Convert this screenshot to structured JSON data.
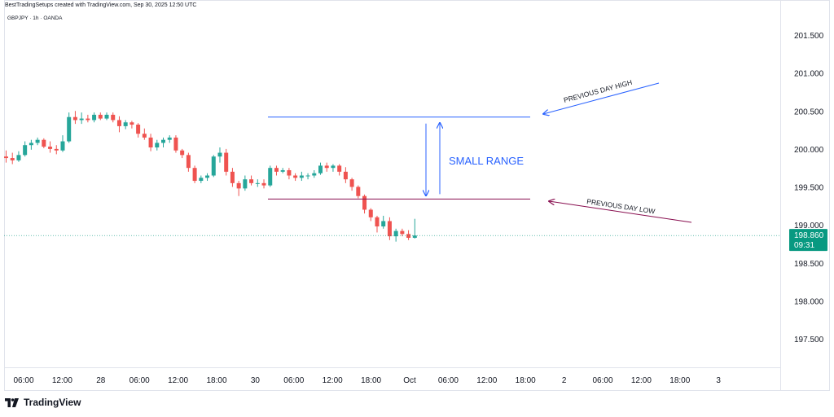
{
  "header": {
    "caption": "BestTradingSetups created with TradingView.com, Sep 30, 2025 12:50 UTC",
    "symbol": "GBPJPY · 1h · OANDA"
  },
  "branding": {
    "logo_text": "TradingView"
  },
  "colors": {
    "up": "#26a69a",
    "down": "#ef5350",
    "blue_line": "#2962ff",
    "red_line": "#880e4f",
    "price_badge": "#089981"
  },
  "chart_data": {
    "type": "candlestick",
    "symbol": "GBPJPY",
    "interval": "1h",
    "y_ticks": [
      "201.500",
      "201.000",
      "200.500",
      "200.000",
      "199.500",
      "199.000",
      "198.500",
      "198.000",
      "197.500"
    ],
    "ylim": [
      197.2,
      201.8
    ],
    "x_ticks": [
      {
        "label": "06:00",
        "i": 2
      },
      {
        "label": "12:00",
        "i": 8
      },
      {
        "label": "28",
        "i": 18
      },
      {
        "label": "06:00",
        "i": 24
      },
      {
        "label": "12:00",
        "i": 30
      },
      {
        "label": "18:00",
        "i": 36
      },
      {
        "label": "30",
        "i": 42
      },
      {
        "label": "06:00",
        "i": 48
      },
      {
        "label": "12:00",
        "i": 54
      },
      {
        "label": "18:00",
        "i": 60
      },
      {
        "label": "Oct",
        "i": 66
      },
      {
        "label": "06:00",
        "i": 72
      },
      {
        "label": "12:00",
        "i": 78
      },
      {
        "label": "18:00",
        "i": 84
      },
      {
        "label": "2",
        "i": 90
      },
      {
        "label": "06:00",
        "i": 96
      },
      {
        "label": "12:00",
        "i": 102
      },
      {
        "label": "18:00",
        "i": 108
      },
      {
        "label": "3",
        "i": 114
      }
    ],
    "candles": [
      {
        "o": 199.9,
        "h": 199.98,
        "l": 199.82,
        "c": 199.88
      },
      {
        "o": 199.88,
        "h": 199.95,
        "l": 199.8,
        "c": 199.85
      },
      {
        "o": 199.85,
        "h": 199.97,
        "l": 199.83,
        "c": 199.92
      },
      {
        "o": 199.92,
        "h": 200.1,
        "l": 199.9,
        "c": 200.05
      },
      {
        "o": 200.05,
        "h": 200.12,
        "l": 199.99,
        "c": 200.08
      },
      {
        "o": 200.08,
        "h": 200.15,
        "l": 200.05,
        "c": 200.12
      },
      {
        "o": 200.12,
        "h": 200.14,
        "l": 200.01,
        "c": 200.03
      },
      {
        "o": 200.03,
        "h": 200.1,
        "l": 199.95,
        "c": 200.0
      },
      {
        "o": 200.0,
        "h": 200.05,
        "l": 199.93,
        "c": 199.98
      },
      {
        "o": 199.98,
        "h": 200.18,
        "l": 199.96,
        "c": 200.1
      },
      {
        "o": 200.1,
        "h": 200.48,
        "l": 200.08,
        "c": 200.42
      },
      {
        "o": 200.42,
        "h": 200.5,
        "l": 200.33,
        "c": 200.38
      },
      {
        "o": 200.38,
        "h": 200.48,
        "l": 200.33,
        "c": 200.4
      },
      {
        "o": 200.4,
        "h": 200.45,
        "l": 200.35,
        "c": 200.38
      },
      {
        "o": 200.38,
        "h": 200.48,
        "l": 200.35,
        "c": 200.45
      },
      {
        "o": 200.45,
        "h": 200.48,
        "l": 200.38,
        "c": 200.4
      },
      {
        "o": 200.4,
        "h": 200.48,
        "l": 200.38,
        "c": 200.45
      },
      {
        "o": 200.45,
        "h": 200.48,
        "l": 200.35,
        "c": 200.38
      },
      {
        "o": 200.38,
        "h": 200.43,
        "l": 200.22,
        "c": 200.3
      },
      {
        "o": 200.3,
        "h": 200.38,
        "l": 200.26,
        "c": 200.35
      },
      {
        "o": 200.35,
        "h": 200.37,
        "l": 200.27,
        "c": 200.32
      },
      {
        "o": 200.32,
        "h": 200.34,
        "l": 200.15,
        "c": 200.2
      },
      {
        "o": 200.2,
        "h": 200.27,
        "l": 200.12,
        "c": 200.15
      },
      {
        "o": 200.15,
        "h": 200.2,
        "l": 199.97,
        "c": 200.02
      },
      {
        "o": 200.02,
        "h": 200.12,
        "l": 199.98,
        "c": 200.08
      },
      {
        "o": 200.08,
        "h": 200.15,
        "l": 200.02,
        "c": 200.12
      },
      {
        "o": 200.12,
        "h": 200.18,
        "l": 200.08,
        "c": 200.15
      },
      {
        "o": 200.15,
        "h": 200.18,
        "l": 199.95,
        "c": 199.98
      },
      {
        "o": 199.98,
        "h": 200.0,
        "l": 199.88,
        "c": 199.92
      },
      {
        "o": 199.92,
        "h": 199.95,
        "l": 199.7,
        "c": 199.75
      },
      {
        "o": 199.75,
        "h": 199.78,
        "l": 199.55,
        "c": 199.58
      },
      {
        "o": 199.58,
        "h": 199.65,
        "l": 199.55,
        "c": 199.62
      },
      {
        "o": 199.62,
        "h": 199.68,
        "l": 199.58,
        "c": 199.65
      },
      {
        "o": 199.65,
        "h": 199.92,
        "l": 199.63,
        "c": 199.9
      },
      {
        "o": 199.9,
        "h": 200.02,
        "l": 199.82,
        "c": 199.95
      },
      {
        "o": 199.95,
        "h": 200.0,
        "l": 199.65,
        "c": 199.7
      },
      {
        "o": 199.7,
        "h": 199.75,
        "l": 199.5,
        "c": 199.55
      },
      {
        "o": 199.55,
        "h": 199.58,
        "l": 199.38,
        "c": 199.48
      },
      {
        "o": 199.48,
        "h": 199.65,
        "l": 199.45,
        "c": 199.6
      },
      {
        "o": 199.6,
        "h": 199.65,
        "l": 199.52,
        "c": 199.55
      },
      {
        "o": 199.55,
        "h": 199.6,
        "l": 199.5,
        "c": 199.55
      },
      {
        "o": 199.55,
        "h": 199.6,
        "l": 199.48,
        "c": 199.52
      },
      {
        "o": 199.52,
        "h": 199.78,
        "l": 199.5,
        "c": 199.75
      },
      {
        "o": 199.75,
        "h": 199.78,
        "l": 199.65,
        "c": 199.7
      },
      {
        "o": 199.7,
        "h": 199.75,
        "l": 199.68,
        "c": 199.72
      },
      {
        "o": 199.72,
        "h": 199.75,
        "l": 199.6,
        "c": 199.65
      },
      {
        "o": 199.65,
        "h": 199.68,
        "l": 199.58,
        "c": 199.62
      },
      {
        "o": 199.62,
        "h": 199.7,
        "l": 199.58,
        "c": 199.65
      },
      {
        "o": 199.65,
        "h": 199.68,
        "l": 199.6,
        "c": 199.65
      },
      {
        "o": 199.65,
        "h": 199.72,
        "l": 199.62,
        "c": 199.68
      },
      {
        "o": 199.68,
        "h": 199.82,
        "l": 199.66,
        "c": 199.78
      },
      {
        "o": 199.78,
        "h": 199.82,
        "l": 199.7,
        "c": 199.75
      },
      {
        "o": 199.75,
        "h": 199.8,
        "l": 199.7,
        "c": 199.78
      },
      {
        "o": 199.78,
        "h": 199.8,
        "l": 199.65,
        "c": 199.7
      },
      {
        "o": 199.7,
        "h": 199.76,
        "l": 199.55,
        "c": 199.6
      },
      {
        "o": 199.6,
        "h": 199.62,
        "l": 199.45,
        "c": 199.5
      },
      {
        "o": 199.5,
        "h": 199.52,
        "l": 199.35,
        "c": 199.38
      },
      {
        "o": 199.38,
        "h": 199.4,
        "l": 199.15,
        "c": 199.2
      },
      {
        "o": 199.2,
        "h": 199.22,
        "l": 199.05,
        "c": 199.1
      },
      {
        "o": 199.1,
        "h": 199.12,
        "l": 198.9,
        "c": 198.98
      },
      {
        "o": 198.98,
        "h": 199.12,
        "l": 198.95,
        "c": 199.05
      },
      {
        "o": 199.05,
        "h": 199.1,
        "l": 198.8,
        "c": 198.85
      },
      {
        "o": 198.85,
        "h": 198.95,
        "l": 198.78,
        "c": 198.92
      },
      {
        "o": 198.92,
        "h": 198.95,
        "l": 198.85,
        "c": 198.88
      },
      {
        "o": 198.88,
        "h": 198.93,
        "l": 198.8,
        "c": 198.83
      },
      {
        "o": 198.83,
        "h": 199.08,
        "l": 198.82,
        "c": 198.86
      }
    ],
    "current_price": {
      "label": "198.860",
      "countdown": "09:31",
      "value": 198.86
    },
    "annotations": {
      "previous_day_high": {
        "label": "PREVIOUS DAY HIGH",
        "level": 200.42
      },
      "previous_day_low": {
        "label": "PREVIOUS DAY LOW",
        "level": 199.34
      },
      "range_label": "SMALL RANGE"
    }
  }
}
